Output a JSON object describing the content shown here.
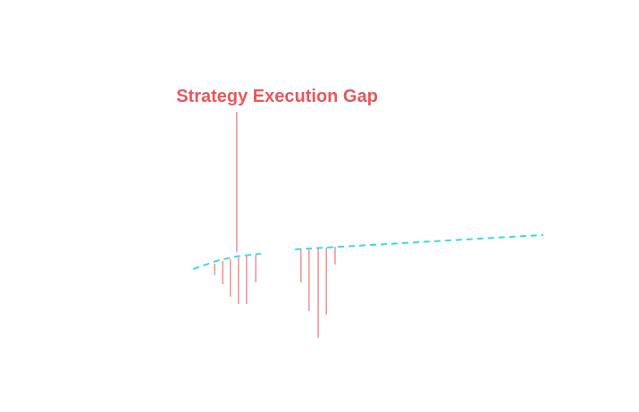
{
  "chart_data": {
    "type": "line",
    "annotation": {
      "text": "Strategy Execution Gap",
      "x": 12.7,
      "y": 39.3,
      "color": "#e8575a"
    },
    "x": [
      0.3,
      7.6,
      12.7,
      19.6,
      25,
      29.3,
      42,
      100
    ],
    "series": [
      {
        "color": "#3dd8ea",
        "values": [
          33,
          36.3,
          37.7,
          38.7,
          null,
          40.3,
          41.3,
          45.7
        ]
      }
    ],
    "drops": {
      "color": "#e8575a",
      "x": [
        6.4,
        8.7,
        10.9,
        13.2,
        15.5,
        18.1,
        31,
        33.3,
        35.9,
        38.2,
        40.7
      ],
      "high": [
        35,
        36,
        36.7,
        37.3,
        37.7,
        38.3,
        40.3,
        40.7,
        41,
        41,
        41.3
      ],
      "low": [
        30.7,
        27.3,
        22.7,
        20,
        20,
        28,
        28,
        17.3,
        7.3,
        16,
        34.7
      ]
    },
    "xlim": [
      0,
      100
    ],
    "ylim": [
      0,
      100
    ]
  }
}
